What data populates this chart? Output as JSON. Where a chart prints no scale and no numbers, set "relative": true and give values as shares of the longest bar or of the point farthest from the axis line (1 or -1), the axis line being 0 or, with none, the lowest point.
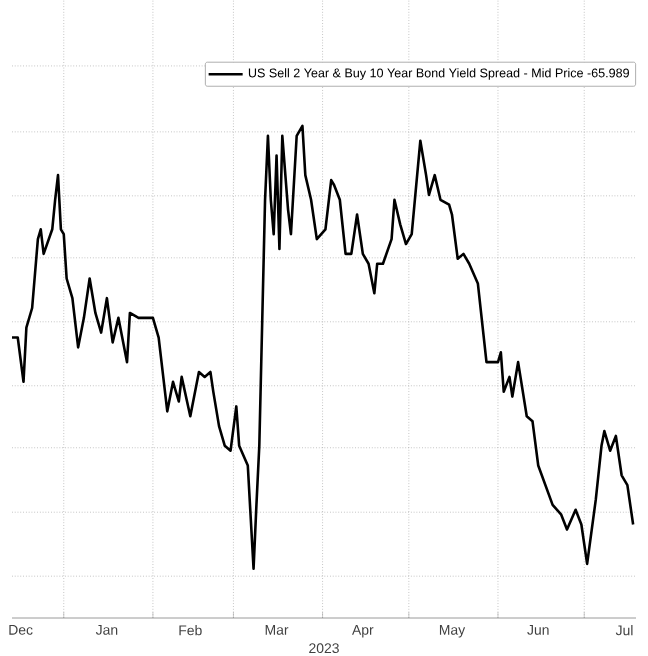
{
  "chart_data": {
    "type": "line",
    "relative": true,
    "xlabel": "2023",
    "grid": true,
    "legend": "top right",
    "xlim": [
      "2022-12-14",
      "2023-07-19"
    ],
    "xticks": [
      {
        "value": "2023-01-01",
        "label": null
      },
      {
        "value": "2023-02-01",
        "label": null
      },
      {
        "value": "2023-03-01",
        "label": null
      },
      {
        "value": "2023-04-01",
        "label": null
      },
      {
        "value": "2023-05-01",
        "label": null
      },
      {
        "value": "2023-06-01",
        "label": null
      },
      {
        "value": "2023-07-01",
        "label": null
      },
      {
        "value": "2022-12-17",
        "label": "Dec"
      },
      {
        "value": "2023-01-16",
        "label": "Jan"
      },
      {
        "value": "2023-02-14",
        "label": "Feb"
      },
      {
        "value": "2023-03-16",
        "label": "Mar"
      },
      {
        "value": "2023-04-15",
        "label": "Apr"
      },
      {
        "value": "2023-05-16",
        "label": "May"
      },
      {
        "value": "2023-06-15",
        "label": "Jun"
      },
      {
        "value": "2023-07-15",
        "label": "Jul"
      }
    ],
    "x": [
      "2022-12-14",
      "2022-12-16",
      "2022-12-18",
      "2022-12-19",
      "2022-12-21",
      "2022-12-23",
      "2022-12-24",
      "2022-12-25",
      "2022-12-28",
      "2022-12-29",
      "2022-12-30",
      "2022-12-31",
      "2023-01-01",
      "2023-01-02",
      "2023-01-04",
      "2023-01-06",
      "2023-01-08",
      "2023-01-10",
      "2023-01-12",
      "2023-01-14",
      "2023-01-16",
      "2023-01-18",
      "2023-01-20",
      "2023-01-23",
      "2023-01-24",
      "2023-01-27",
      "2023-01-30",
      "2023-02-01",
      "2023-02-03",
      "2023-02-06",
      "2023-02-08",
      "2023-02-10",
      "2023-02-11",
      "2023-02-14",
      "2023-02-17",
      "2023-02-19",
      "2023-02-21",
      "2023-02-22",
      "2023-02-24",
      "2023-02-26",
      "2023-02-28",
      "2023-03-02",
      "2023-03-03",
      "2023-03-06",
      "2023-03-08",
      "2023-03-09",
      "2023-03-10",
      "2023-03-12",
      "2023-03-13",
      "2023-03-14",
      "2023-03-15",
      "2023-03-16",
      "2023-03-17",
      "2023-03-18",
      "2023-03-20",
      "2023-03-21",
      "2023-03-23",
      "2023-03-25",
      "2023-03-26",
      "2023-03-28",
      "2023-03-30",
      "2023-04-02",
      "2023-04-04",
      "2023-04-05",
      "2023-04-07",
      "2023-04-09",
      "2023-04-11",
      "2023-04-13",
      "2023-04-15",
      "2023-04-17",
      "2023-04-19",
      "2023-04-20",
      "2023-04-22",
      "2023-04-25",
      "2023-04-26",
      "2023-04-28",
      "2023-04-30",
      "2023-05-02",
      "2023-05-05",
      "2023-05-07",
      "2023-05-08",
      "2023-05-10",
      "2023-05-12",
      "2023-05-15",
      "2023-05-16",
      "2023-05-18",
      "2023-05-20",
      "2023-05-22",
      "2023-05-25",
      "2023-05-28",
      "2023-06-01",
      "2023-06-02",
      "2023-06-03",
      "2023-06-05",
      "2023-06-06",
      "2023-06-08",
      "2023-06-11",
      "2023-06-13",
      "2023-06-15",
      "2023-06-20",
      "2023-06-23",
      "2023-06-25",
      "2023-06-28",
      "2023-06-30",
      "2023-07-02",
      "2023-07-05",
      "2023-07-07",
      "2023-07-08",
      "2023-07-10",
      "2023-07-12",
      "2023-07-14",
      "2023-07-16",
      "2023-07-18"
    ],
    "series": [
      {
        "name": "US Sell 2 Year & Buy 10 Year Bond Yield Spread - Mid Price -65.989",
        "color": "#000000",
        "values": [
          0.57,
          0.57,
          0.48,
          0.59,
          0.63,
          0.77,
          0.79,
          0.74,
          0.79,
          0.85,
          0.9,
          0.79,
          0.78,
          0.69,
          0.65,
          0.55,
          0.61,
          0.69,
          0.62,
          0.58,
          0.65,
          0.56,
          0.61,
          0.52,
          0.62,
          0.61,
          0.61,
          0.61,
          0.57,
          0.42,
          0.48,
          0.44,
          0.49,
          0.41,
          0.5,
          0.49,
          0.5,
          0.46,
          0.39,
          0.35,
          0.34,
          0.43,
          0.35,
          0.31,
          0.1,
          0.23,
          0.35,
          0.85,
          0.98,
          0.85,
          0.78,
          0.94,
          0.75,
          0.98,
          0.83,
          0.78,
          0.98,
          1.0,
          0.9,
          0.85,
          0.77,
          0.79,
          0.89,
          0.88,
          0.85,
          0.74,
          0.74,
          0.82,
          0.74,
          0.72,
          0.66,
          0.72,
          0.72,
          0.77,
          0.85,
          0.8,
          0.76,
          0.78,
          0.97,
          0.9,
          0.86,
          0.9,
          0.85,
          0.84,
          0.82,
          0.73,
          0.74,
          0.72,
          0.68,
          0.52,
          0.52,
          0.54,
          0.46,
          0.49,
          0.45,
          0.52,
          0.41,
          0.4,
          0.31,
          0.23,
          0.21,
          0.18,
          0.22,
          0.19,
          0.11,
          0.24,
          0.35,
          0.38,
          0.34,
          0.37,
          0.29,
          0.27,
          0.19
        ]
      }
    ]
  }
}
